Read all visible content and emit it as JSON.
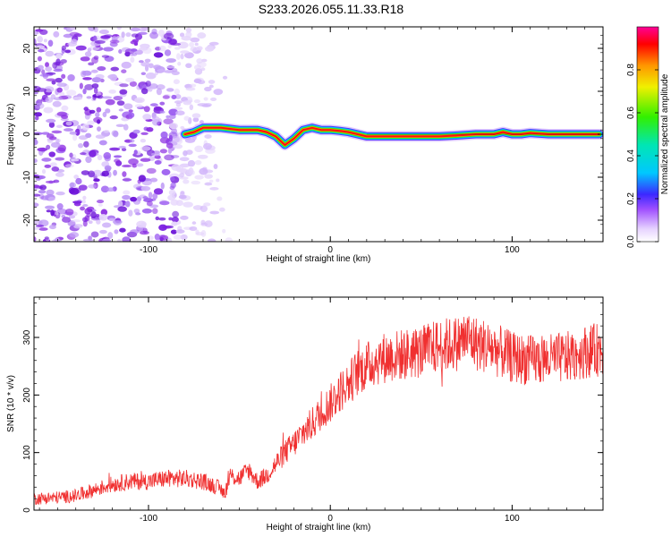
{
  "figure_title": "S233.2026.055.11.33.R18",
  "chart_data": [
    {
      "type": "heatmap",
      "title": "S233.2026.055.11.33.R18",
      "xlabel": "Height of straight line (km)",
      "ylabel": "Frequency (Hz)",
      "xlim": [
        -163,
        150
      ],
      "ylim": [
        -25,
        25
      ],
      "x_ticks": [
        -100,
        0,
        100
      ],
      "y_ticks": [
        -20,
        -10,
        0,
        10,
        20
      ],
      "colorbar": {
        "label": "Normalized spectral amplitude",
        "range": [
          0,
          1
        ],
        "ticks": [
          0.0,
          0.2,
          0.4,
          0.6,
          0.8
        ]
      },
      "noise_region_x": [
        -163,
        -65
      ],
      "ridge": {
        "description_free": true,
        "x": [
          -80,
          -75,
          -70,
          -60,
          -50,
          -40,
          -35,
          -30,
          -25,
          -20,
          -15,
          -10,
          -5,
          0,
          5,
          10,
          15,
          20,
          30,
          40,
          50,
          60,
          70,
          80,
          90,
          95,
          100,
          105,
          110,
          120,
          130,
          140,
          148
        ],
        "freq": [
          0,
          0.5,
          1.5,
          1.5,
          1.0,
          1.0,
          0.5,
          -0.5,
          -2.5,
          -1.0,
          1.0,
          1.5,
          1.0,
          1.0,
          0.8,
          0.5,
          0,
          -0.5,
          -0.5,
          -0.5,
          -0.5,
          -0.5,
          -0.3,
          0,
          0,
          0.5,
          0,
          0,
          0.3,
          0,
          0,
          0,
          0
        ]
      }
    },
    {
      "type": "line",
      "xlabel": "Height of straight line (km)",
      "ylabel": "SNR (10 * v/v)",
      "xlim": [
        -163,
        150
      ],
      "ylim": [
        0,
        370
      ],
      "x_ticks": [
        -100,
        0,
        100
      ],
      "y_ticks": [
        0,
        100,
        200,
        300
      ],
      "color": "#f03030",
      "series": [
        {
          "name": "SNR",
          "x": [
            -163,
            -150,
            -140,
            -130,
            -120,
            -110,
            -100,
            -90,
            -80,
            -70,
            -62,
            -58,
            -55,
            -50,
            -45,
            -40,
            -35,
            -30,
            -25,
            -20,
            -15,
            -10,
            -5,
            0,
            5,
            10,
            15,
            20,
            25,
            30,
            40,
            50,
            60,
            70,
            75,
            80,
            90,
            100,
            110,
            120,
            130,
            140,
            150
          ],
          "values": [
            20,
            22,
            25,
            35,
            45,
            50,
            50,
            55,
            55,
            50,
            40,
            30,
            60,
            55,
            70,
            50,
            60,
            80,
            100,
            115,
            135,
            150,
            170,
            185,
            205,
            220,
            240,
            250,
            260,
            265,
            270,
            275,
            285,
            290,
            300,
            290,
            280,
            265,
            260,
            262,
            265,
            275,
            280
          ]
        }
      ],
      "spike_annotations_free": true
    }
  ]
}
